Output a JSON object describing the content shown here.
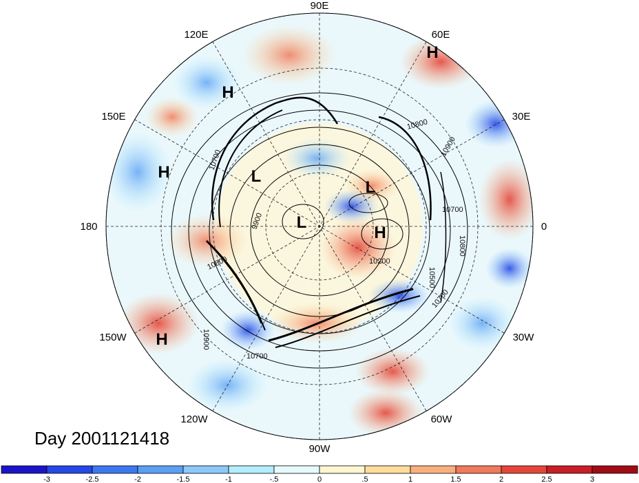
{
  "title": "Day 2001121418",
  "longitude_labels": [
    "90E",
    "60E",
    "30E",
    "0",
    "30W",
    "60W",
    "90W",
    "120W",
    "150W",
    "180",
    "150E",
    "120E"
  ],
  "pressure_centers": [
    "H",
    "H",
    "H",
    "H",
    "H",
    "L",
    "L",
    "L"
  ],
  "contour_labels": [
    "10800",
    "10900",
    "10700",
    "10500",
    "10200",
    "10700",
    "10800",
    "10700",
    "10900",
    "10800",
    "10700",
    "9900"
  ],
  "colorbar": {
    "colors": [
      "#1a14c8",
      "#2448e6",
      "#3c78f0",
      "#5aa0f5",
      "#8cc8fa",
      "#b4ecfc",
      "#e6fafe",
      "#fdf6d0",
      "#fddc9c",
      "#f9b07e",
      "#f07a5c",
      "#e4463a",
      "#c81e26",
      "#a00c14"
    ],
    "tick_labels": [
      "-3",
      "-2.5",
      "-2",
      "-1.5",
      "-1",
      "-.5",
      "0",
      ".5",
      "1",
      "1.5",
      "2",
      "2.5",
      "3"
    ]
  }
}
